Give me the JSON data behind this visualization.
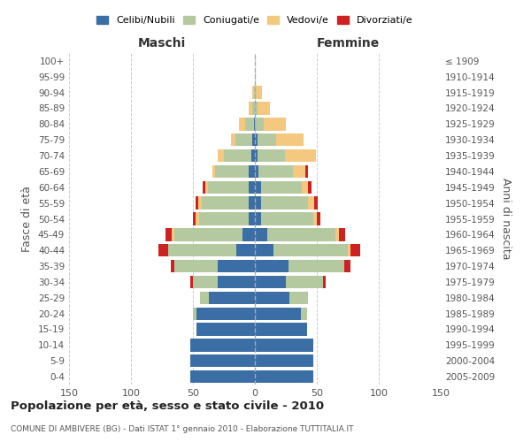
{
  "age_groups": [
    "0-4",
    "5-9",
    "10-14",
    "15-19",
    "20-24",
    "25-29",
    "30-34",
    "35-39",
    "40-44",
    "45-49",
    "50-54",
    "55-59",
    "60-64",
    "65-69",
    "70-74",
    "75-79",
    "80-84",
    "85-89",
    "90-94",
    "95-99",
    "100+"
  ],
  "birth_years": [
    "2005-2009",
    "2000-2004",
    "1995-1999",
    "1990-1994",
    "1985-1989",
    "1980-1984",
    "1975-1979",
    "1970-1974",
    "1965-1969",
    "1960-1964",
    "1955-1959",
    "1950-1954",
    "1945-1949",
    "1940-1944",
    "1935-1939",
    "1930-1934",
    "1925-1929",
    "1920-1924",
    "1915-1919",
    "1910-1914",
    "≤ 1909"
  ],
  "maschi": {
    "celibi": [
      52,
      52,
      52,
      47,
      47,
      37,
      30,
      30,
      15,
      10,
      5,
      5,
      5,
      5,
      3,
      2,
      1,
      0,
      0,
      0,
      0
    ],
    "coniugati": [
      0,
      0,
      0,
      0,
      3,
      7,
      20,
      35,
      55,
      55,
      40,
      38,
      33,
      27,
      22,
      14,
      7,
      2,
      1,
      0,
      0
    ],
    "vedovi": [
      0,
      0,
      0,
      0,
      0,
      0,
      0,
      0,
      0,
      2,
      3,
      3,
      2,
      2,
      5,
      3,
      5,
      3,
      1,
      0,
      0
    ],
    "divorziati": [
      0,
      0,
      0,
      0,
      0,
      0,
      2,
      3,
      8,
      5,
      2,
      2,
      2,
      0,
      0,
      0,
      0,
      0,
      0,
      0,
      0
    ]
  },
  "femmine": {
    "nubili": [
      47,
      47,
      47,
      42,
      37,
      28,
      25,
      27,
      15,
      10,
      5,
      5,
      5,
      3,
      2,
      2,
      0,
      0,
      0,
      0,
      0
    ],
    "coniugate": [
      0,
      0,
      0,
      0,
      5,
      15,
      30,
      45,
      60,
      55,
      42,
      38,
      33,
      28,
      22,
      15,
      7,
      2,
      1,
      0,
      0
    ],
    "vedove": [
      0,
      0,
      0,
      0,
      0,
      0,
      0,
      0,
      2,
      3,
      3,
      5,
      5,
      10,
      25,
      22,
      18,
      10,
      5,
      1,
      0
    ],
    "divorziate": [
      0,
      0,
      0,
      0,
      0,
      0,
      2,
      5,
      8,
      5,
      3,
      3,
      3,
      2,
      0,
      0,
      0,
      0,
      0,
      0,
      0
    ]
  },
  "colors": {
    "celibi": "#3a6ea5",
    "coniugati": "#b5c9a0",
    "vedovi": "#f5c880",
    "divorziati": "#cc2222"
  },
  "xlim": 150,
  "title": "Popolazione per età, sesso e stato civile - 2010",
  "subtitle": "COMUNE DI AMBIVERE (BG) - Dati ISTAT 1° gennaio 2010 - Elaborazione TUTTITALIA.IT",
  "ylabel_left": "Fasce di età",
  "ylabel_right": "Anni di nascita",
  "xlabel_maschi": "Maschi",
  "xlabel_femmine": "Femmine"
}
